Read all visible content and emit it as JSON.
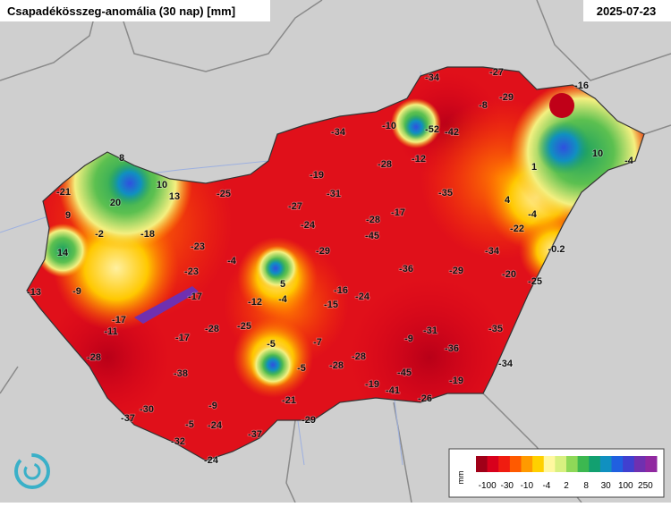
{
  "header": {
    "title": "Csapadékösszeg-anomália (30 nap) [mm]",
    "date": "2025-07-23"
  },
  "stations": [
    -34,
    -27,
    -16,
    -29,
    -8,
    -10,
    -52,
    -42,
    -34,
    -12,
    -28,
    1,
    10,
    -4,
    8,
    -21,
    10,
    13,
    20,
    -19,
    -25,
    -31,
    -35,
    4,
    -27,
    -17,
    -4,
    9,
    -24,
    -28,
    -22,
    -2,
    -18,
    -45,
    -23,
    -29,
    -34,
    -0.2,
    14,
    -4,
    -36,
    -29,
    -20,
    -23,
    5,
    -25,
    -13,
    -9,
    -17,
    -12,
    -4,
    -16,
    -24,
    -15,
    -17,
    -11,
    -25,
    -28,
    -17,
    -7,
    -5,
    -9,
    -31,
    -35,
    -36,
    -28,
    -28,
    -5,
    -28,
    -34,
    -38,
    -45,
    -19,
    -41,
    -19,
    -26,
    -9,
    -21,
    -30,
    -37,
    -5,
    -24,
    -29,
    -37,
    -32,
    -24
  ],
  "legend": {
    "unit": "mm",
    "labels": [
      -100,
      -30,
      -10,
      -4,
      2,
      8,
      30,
      100,
      250
    ],
    "colors": [
      "#a00018",
      "#d8001c",
      "#f01c10",
      "#ff5a00",
      "#ff9a00",
      "#ffd000",
      "#fff8a0",
      "#d8f080",
      "#8ed858",
      "#3cb850",
      "#12a070",
      "#1090c0",
      "#2060e0",
      "#4040d0",
      "#7030b0",
      "#9028a0"
    ]
  }
}
